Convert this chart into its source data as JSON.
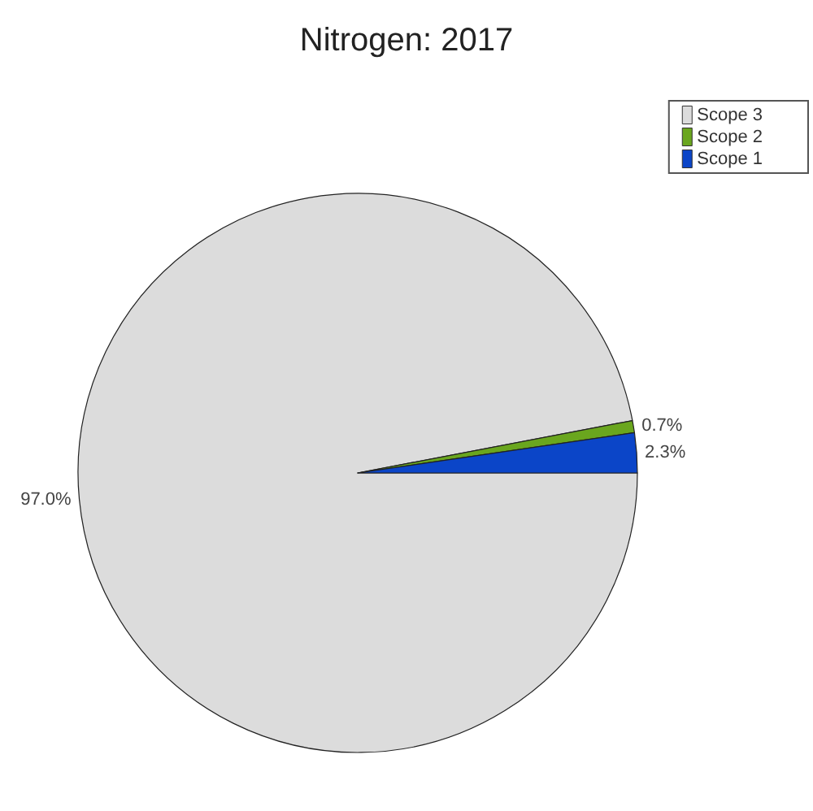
{
  "chart_data": {
    "type": "pie",
    "title": "Nitrogen: 2017",
    "categories": [
      "Scope 3",
      "Scope 2",
      "Scope 1"
    ],
    "values": [
      97.0,
      0.7,
      2.3
    ],
    "colors": [
      "#dcdcdc",
      "#6aa61e",
      "#0b45c8"
    ],
    "value_labels": [
      "97.0%",
      "0.7%",
      "2.3%"
    ],
    "legend": "top right"
  }
}
